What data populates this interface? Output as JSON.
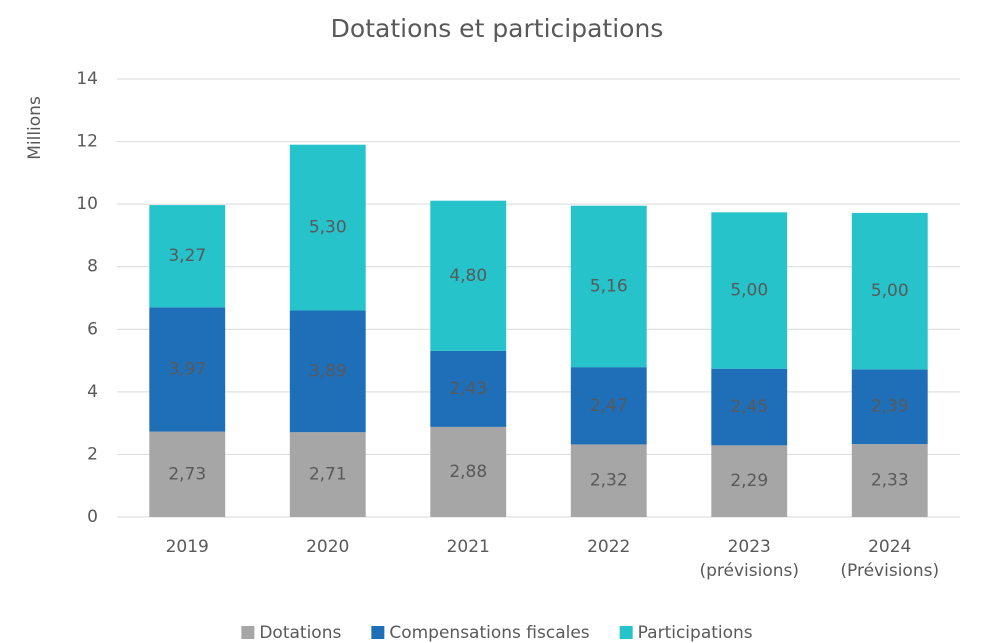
{
  "chart_data": {
    "type": "stacked_bar",
    "title": "Dotations et participations",
    "y_label": "Millions",
    "categories": [
      "2019",
      "2020",
      "2021",
      "2022",
      "2023\n(prévisions)",
      "2024\n(Prévisions)"
    ],
    "series": [
      {
        "name": "Dotations",
        "color": "#a6a6a6",
        "values": [
          2.73,
          2.71,
          2.88,
          2.32,
          2.29,
          2.33
        ],
        "value_labels": [
          "2,73",
          "2,71",
          "2,88",
          "2,32",
          "2,29",
          "2,33"
        ]
      },
      {
        "name": "Compensations fiscales",
        "color": "#1f6fb8",
        "values": [
          3.97,
          3.89,
          2.43,
          2.47,
          2.45,
          2.39
        ],
        "value_labels": [
          "3,97",
          "3,89",
          "2,43",
          "2,47",
          "2,45",
          "2,39"
        ]
      },
      {
        "name": "Participations",
        "color": "#26c3cb",
        "values": [
          3.27,
          5.3,
          4.8,
          5.16,
          5.0,
          5.0
        ],
        "value_labels": [
          "3,27",
          "5,30",
          "4,80",
          "5,16",
          "5,00",
          "5,00"
        ]
      }
    ],
    "ylim": [
      0,
      14
    ],
    "yticks": [
      0,
      2,
      4,
      6,
      8,
      10,
      12,
      14
    ],
    "grid": true,
    "legend": "bottom"
  }
}
